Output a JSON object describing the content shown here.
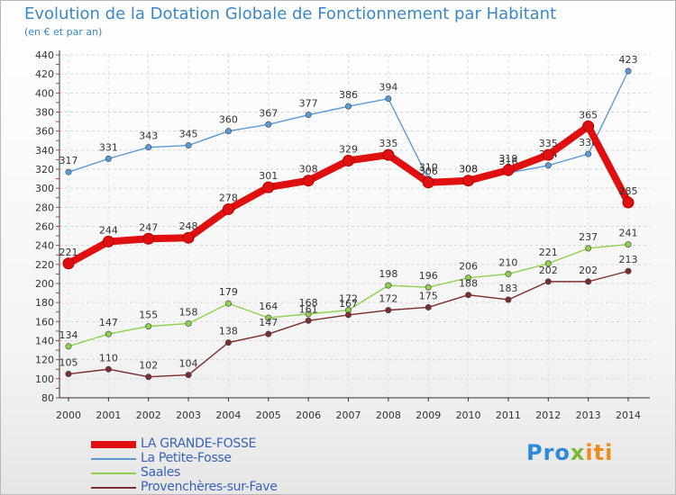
{
  "title": "Evolution de la Dotation Globale de Fonctionnement par Habitant",
  "subtitle": "(en € et par an)",
  "logo": {
    "part1": "Pro",
    "part2": "x",
    "part3": "iti"
  },
  "chart_data": {
    "type": "line",
    "title": "Evolution de la Dotation Globale de Fonctionnement par Habitant",
    "subtitle": "(en € et par an)",
    "xlabel": "",
    "ylabel": "",
    "x": [
      "2000",
      "2001",
      "2002",
      "2003",
      "2004",
      "2005",
      "2006",
      "2007",
      "2008",
      "2009",
      "2010",
      "2011",
      "2012",
      "2013",
      "2014"
    ],
    "ylim": [
      80,
      440
    ],
    "yticks": [
      80,
      100,
      120,
      140,
      160,
      180,
      200,
      220,
      240,
      260,
      280,
      300,
      320,
      340,
      360,
      380,
      400,
      420,
      440
    ],
    "grid": true,
    "legend_position": "bottom-left",
    "series": [
      {
        "name": "La Petite-Fosse",
        "color": "#5b9bd5",
        "values": [
          317,
          331,
          343,
          345,
          360,
          367,
          377,
          386,
          394,
          310,
          308,
          316,
          324,
          336,
          423
        ]
      },
      {
        "name": "Saales",
        "color": "#8fd14f",
        "values": [
          134,
          147,
          155,
          158,
          179,
          164,
          168,
          172,
          198,
          196,
          206,
          210,
          221,
          237,
          241
        ]
      },
      {
        "name": "Provenchères-sur-Fave",
        "color": "#7a2e2e",
        "values": [
          105,
          110,
          102,
          104,
          138,
          147,
          161,
          167,
          172,
          175,
          188,
          183,
          202,
          202,
          213
        ]
      },
      {
        "name": "LA GRANDE-FOSSE",
        "color": "#e01010",
        "values": [
          221,
          244,
          247,
          248,
          278,
          301,
          308,
          329,
          335,
          306,
          308,
          319,
          335,
          365,
          285
        ]
      }
    ],
    "legend": [
      {
        "name": "LA GRANDE-FOSSE",
        "color": "#e01010"
      },
      {
        "name": "La Petite-Fosse",
        "color": "#5b9bd5"
      },
      {
        "name": "Saales",
        "color": "#8fd14f"
      },
      {
        "name": "Provenchères-sur-Fave",
        "color": "#7a2e2e"
      }
    ]
  }
}
